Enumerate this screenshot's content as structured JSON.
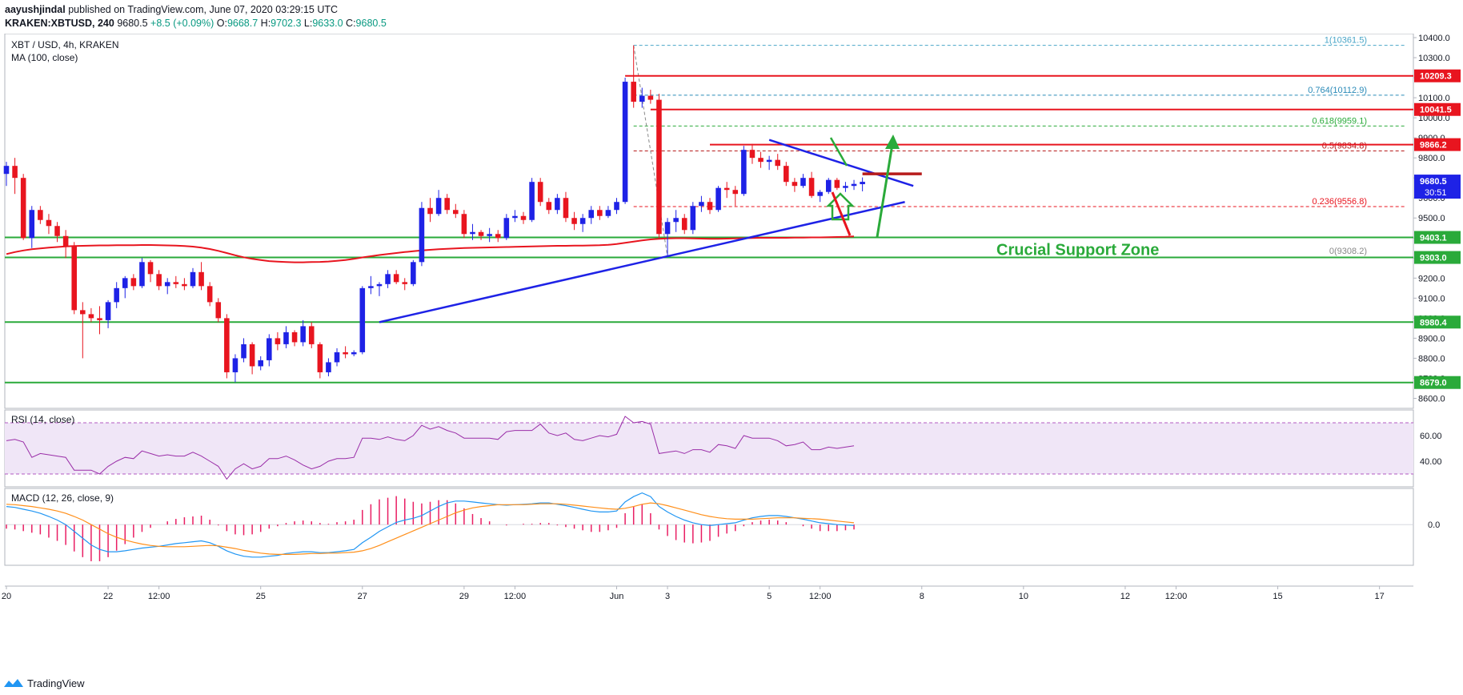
{
  "header": {
    "line1_user": "aayushjindal",
    "line1_rest": "published on TradingView.com, June 07, 2020 03:29:15 UTC",
    "symbol": "KRAKEN:XBTUSD, 240",
    "last": "9680.5",
    "change": "+8.5 (+0.09%)",
    "o_label": "O:",
    "o": "9668.7",
    "h_label": "H:",
    "h": "9702.3",
    "l_label": "L:",
    "l": "9633.0",
    "c_label": "C:",
    "c": "9680.5"
  },
  "chart_labels": {
    "pair": "XBT / USD, 4h, KRAKEN",
    "ma": "MA (100, close)",
    "rsi": "RSI (14, close)",
    "macd": "MACD (12, 26, close, 9)",
    "annotation": "Crucial Support Zone"
  },
  "footer": {
    "brand": "TradingView"
  },
  "colors": {
    "up": "#1e22e6",
    "down": "#e8151f",
    "ma": "#e8151f",
    "support": "#2aaa3a",
    "resistance": "#e8151f",
    "trendline": "#1e22e6",
    "fib": "#4aa6c8",
    "rsi": "#9a2ea8",
    "macd": "#2196f3",
    "signal": "#ff8f1a",
    "hist": "#e91e63"
  },
  "chart_data": {
    "type": "candlestick",
    "ylim": [
      8550,
      10420
    ],
    "y_ticks": [
      8600,
      8700,
      8800,
      8900,
      9000,
      9100,
      9200,
      9300,
      9400,
      9500,
      9600,
      9700,
      9800,
      9900,
      10000,
      10100,
      10200,
      10300,
      10400
    ],
    "y_tick_labels": [
      "8600.0",
      "8700.0",
      "8800.0",
      "8900.0",
      "9000.0",
      "9100.0",
      "9200.0",
      "9300.0",
      "9400.0",
      "9500.0",
      "9600.0",
      "9700.0",
      "9800.0",
      "9900.0",
      "10000.0",
      "10100.0",
      "10200.0",
      "10300.0",
      "10400.0"
    ],
    "x_tick_labels": [
      "20",
      "22",
      "12:00",
      "25",
      "27",
      "29",
      "12:00",
      "Jun",
      "3",
      "5",
      "12:00",
      "8",
      "10",
      "12",
      "12:00",
      "15",
      "17"
    ],
    "x_tick_candle_index": [
      0,
      12,
      18,
      30,
      42,
      54,
      60,
      72,
      78,
      90,
      96,
      108,
      120,
      132,
      138,
      150,
      162
    ],
    "candles": [
      [
        9720,
        9780,
        9660,
        9760
      ],
      [
        9760,
        9800,
        9620,
        9700
      ],
      [
        9700,
        9720,
        9390,
        9400
      ],
      [
        9400,
        9560,
        9350,
        9540
      ],
      [
        9540,
        9560,
        9470,
        9490
      ],
      [
        9490,
        9520,
        9420,
        9460
      ],
      [
        9460,
        9480,
        9380,
        9410
      ],
      [
        9410,
        9440,
        9300,
        9360
      ],
      [
        9360,
        9380,
        9020,
        9040
      ],
      [
        9040,
        9080,
        8800,
        9020
      ],
      [
        9020,
        9050,
        8980,
        9000
      ],
      [
        9000,
        9060,
        8920,
        8990
      ],
      [
        8990,
        9090,
        8950,
        9080
      ],
      [
        9080,
        9180,
        9050,
        9150
      ],
      [
        9150,
        9210,
        9100,
        9200
      ],
      [
        9200,
        9220,
        9140,
        9160
      ],
      [
        9160,
        9300,
        9150,
        9280
      ],
      [
        9280,
        9290,
        9180,
        9220
      ],
      [
        9220,
        9240,
        9140,
        9160
      ],
      [
        9160,
        9200,
        9120,
        9180
      ],
      [
        9180,
        9210,
        9150,
        9170
      ],
      [
        9170,
        9200,
        9140,
        9160
      ],
      [
        9160,
        9250,
        9150,
        9230
      ],
      [
        9230,
        9280,
        9140,
        9160
      ],
      [
        9160,
        9180,
        9060,
        9080
      ],
      [
        9080,
        9100,
        8980,
        9000
      ],
      [
        9000,
        9020,
        8700,
        8730
      ],
      [
        8730,
        8820,
        8680,
        8800
      ],
      [
        8800,
        8900,
        8780,
        8870
      ],
      [
        8870,
        8880,
        8720,
        8760
      ],
      [
        8760,
        8810,
        8740,
        8790
      ],
      [
        8790,
        8920,
        8760,
        8900
      ],
      [
        8900,
        8930,
        8840,
        8870
      ],
      [
        8870,
        8960,
        8850,
        8930
      ],
      [
        8930,
        8940,
        8860,
        8880
      ],
      [
        8880,
        8990,
        8860,
        8960
      ],
      [
        8960,
        8980,
        8850,
        8870
      ],
      [
        8870,
        8880,
        8700,
        8730
      ],
      [
        8730,
        8800,
        8710,
        8780
      ],
      [
        8780,
        8850,
        8760,
        8830
      ],
      [
        8830,
        8860,
        8800,
        8820
      ],
      [
        8820,
        8840,
        8810,
        8830
      ],
      [
        8830,
        9160,
        8820,
        9150
      ],
      [
        9150,
        9210,
        9120,
        9160
      ],
      [
        9160,
        9180,
        9110,
        9170
      ],
      [
        9170,
        9240,
        9150,
        9220
      ],
      [
        9220,
        9240,
        9170,
        9180
      ],
      [
        9180,
        9200,
        9140,
        9170
      ],
      [
        9170,
        9290,
        9160,
        9280
      ],
      [
        9280,
        9580,
        9260,
        9550
      ],
      [
        9550,
        9600,
        9480,
        9520
      ],
      [
        9520,
        9640,
        9510,
        9600
      ],
      [
        9600,
        9620,
        9520,
        9540
      ],
      [
        9540,
        9570,
        9500,
        9520
      ],
      [
        9520,
        9540,
        9400,
        9420
      ],
      [
        9420,
        9470,
        9390,
        9430
      ],
      [
        9430,
        9440,
        9390,
        9410
      ],
      [
        9410,
        9450,
        9380,
        9420
      ],
      [
        9420,
        9440,
        9380,
        9400
      ],
      [
        9400,
        9520,
        9390,
        9500
      ],
      [
        9500,
        9540,
        9480,
        9510
      ],
      [
        9510,
        9530,
        9470,
        9490
      ],
      [
        9490,
        9700,
        9480,
        9680
      ],
      [
        9680,
        9700,
        9560,
        9580
      ],
      [
        9580,
        9600,
        9520,
        9540
      ],
      [
        9540,
        9620,
        9520,
        9600
      ],
      [
        9600,
        9630,
        9480,
        9500
      ],
      [
        9500,
        9530,
        9440,
        9470
      ],
      [
        9470,
        9520,
        9430,
        9500
      ],
      [
        9500,
        9560,
        9470,
        9540
      ],
      [
        9540,
        9560,
        9490,
        9510
      ],
      [
        9510,
        9560,
        9500,
        9540
      ],
      [
        9540,
        9600,
        9520,
        9580
      ],
      [
        9580,
        10200,
        9570,
        10180
      ],
      [
        10180,
        10361.5,
        10050,
        10080
      ],
      [
        10080,
        10150,
        10050,
        10110
      ],
      [
        10110,
        10140,
        10070,
        10090
      ],
      [
        10090,
        10120,
        9400,
        9420
      ],
      [
        9420,
        9500,
        9308.2,
        9480
      ],
      [
        9480,
        9540,
        9430,
        9500
      ],
      [
        9500,
        9520,
        9420,
        9440
      ],
      [
        9440,
        9580,
        9420,
        9560
      ],
      [
        9560,
        9610,
        9530,
        9580
      ],
      [
        9580,
        9600,
        9520,
        9540
      ],
      [
        9540,
        9660,
        9530,
        9650
      ],
      [
        9650,
        9680,
        9600,
        9640
      ],
      [
        9640,
        9660,
        9560,
        9620
      ],
      [
        9620,
        9860,
        9610,
        9840
      ],
      [
        9840,
        9870,
        9770,
        9800
      ],
      [
        9800,
        9830,
        9750,
        9780
      ],
      [
        9780,
        9810,
        9740,
        9790
      ],
      [
        9790,
        9820,
        9740,
        9760
      ],
      [
        9760,
        9780,
        9660,
        9680
      ],
      [
        9680,
        9700,
        9630,
        9660
      ],
      [
        9660,
        9720,
        9650,
        9700
      ],
      [
        9700,
        9730,
        9600,
        9610
      ],
      [
        9610,
        9640,
        9580,
        9630
      ],
      [
        9630,
        9700,
        9620,
        9690
      ],
      [
        9690,
        9700,
        9640,
        9650
      ],
      [
        9650,
        9680,
        9630,
        9660
      ],
      [
        9660,
        9690,
        9640,
        9670
      ],
      [
        9668.7,
        9702.3,
        9633.0,
        9680.5
      ]
    ],
    "ma100": [
      9320,
      9330,
      9338,
      9344,
      9348,
      9352,
      9355,
      9358,
      9360,
      9361,
      9362,
      9363,
      9363,
      9364,
      9364,
      9364,
      9365,
      9365,
      9364,
      9363,
      9362,
      9360,
      9357,
      9352,
      9345,
      9336,
      9325,
      9314,
      9304,
      9296,
      9290,
      9285,
      9282,
      9280,
      9279,
      9279,
      9280,
      9281,
      9283,
      9286,
      9290,
      9296,
      9303,
      9309,
      9315,
      9320,
      9325,
      9330,
      9334,
      9338,
      9341,
      9344,
      9346,
      9348,
      9350,
      9351,
      9352,
      9353,
      9354,
      9355,
      9356,
      9357,
      9358,
      9359,
      9360,
      9361,
      9361,
      9362,
      9362,
      9363,
      9364,
      9366,
      9370,
      9376,
      9382,
      9388,
      9393,
      9396,
      9398,
      9399,
      9399,
      9398,
      9397,
      9396,
      9396,
      9397,
      9398,
      9399,
      9400,
      9401,
      9401,
      9401,
      9401,
      9402,
      9402,
      9403,
      9403,
      9404,
      9405,
      9406,
      9408
    ],
    "price_levels": [
      {
        "value": 10209.3,
        "label": "10209.3",
        "kind": "resistance"
      },
      {
        "value": 10041.5,
        "label": "10041.5",
        "kind": "resistance"
      },
      {
        "value": 9866.2,
        "label": "9866.2",
        "kind": "resistance"
      },
      {
        "value": 9403.1,
        "label": "9403.1",
        "kind": "support"
      },
      {
        "value": 9303.0,
        "label": "9303.0",
        "kind": "support"
      },
      {
        "value": 8980.4,
        "label": "8980.4",
        "kind": "support"
      },
      {
        "value": 8679.0,
        "label": "8679.0",
        "kind": "support"
      }
    ],
    "last_price": {
      "value": 9680.5,
      "label": "9680.5",
      "countdown": "30:51"
    },
    "fib_levels": [
      {
        "ratio": "1",
        "value": 10361.5,
        "label": "1(10361.5)",
        "color": "#4aa6c8"
      },
      {
        "ratio": "0.764",
        "value": 10112.9,
        "label": "0.764(10112.9)",
        "color": "#2a8ab8"
      },
      {
        "ratio": "0.618",
        "value": 9959.1,
        "label": "0.618(9959.1)",
        "color": "#2aaa3a"
      },
      {
        "ratio": "0.5",
        "value": 9834.8,
        "label": "0.5(9834.8)",
        "color": "#b71c1c"
      },
      {
        "ratio": "0.236",
        "value": 9556.8,
        "label": "0.236(9556.8)",
        "color": "#e8151f"
      },
      {
        "ratio": "0",
        "value": 9308.2,
        "label": "0(9308.2)",
        "color": "#888888"
      }
    ],
    "rsi": {
      "ylim": [
        20,
        80
      ],
      "ticks": [
        40,
        60
      ],
      "tick_labels": [
        "40.00",
        "60.00"
      ],
      "band": [
        30,
        70
      ],
      "values": [
        56,
        57,
        55,
        43,
        46,
        45,
        44,
        43,
        33,
        33,
        33,
        30,
        36,
        40,
        43,
        42,
        48,
        46,
        44,
        45,
        44,
        44,
        47,
        44,
        40,
        36,
        26,
        34,
        38,
        34,
        36,
        42,
        42,
        44,
        41,
        37,
        34,
        36,
        40,
        42,
        42,
        43,
        58,
        58,
        57,
        59,
        57,
        56,
        60,
        68,
        65,
        67,
        64,
        62,
        58,
        58,
        58,
        58,
        57,
        63,
        64,
        64,
        64,
        69,
        62,
        60,
        62,
        57,
        56,
        58,
        60,
        59,
        61,
        75,
        70,
        71,
        69,
        46,
        47,
        48,
        46,
        49,
        49,
        47,
        53,
        52,
        50,
        60,
        58,
        58,
        58,
        56,
        52,
        53,
        55,
        49,
        49,
        51,
        50,
        51,
        52
      ]
    },
    "macd": {
      "ylim": [
        -90,
        80
      ],
      "ticks": [
        0
      ],
      "tick_labels": [
        "0.0"
      ],
      "macd": [
        40,
        38,
        34,
        30,
        25,
        18,
        10,
        0,
        -15,
        -30,
        -45,
        -55,
        -60,
        -60,
        -58,
        -55,
        -52,
        -50,
        -48,
        -45,
        -42,
        -40,
        -38,
        -36,
        -40,
        -48,
        -58,
        -65,
        -70,
        -72,
        -72,
        -70,
        -68,
        -64,
        -62,
        -60,
        -60,
        -62,
        -62,
        -60,
        -58,
        -55,
        -40,
        -28,
        -15,
        -5,
        5,
        10,
        14,
        20,
        30,
        40,
        48,
        52,
        52,
        50,
        48,
        46,
        44,
        43,
        44,
        45,
        46,
        48,
        48,
        45,
        42,
        38,
        34,
        30,
        28,
        28,
        30,
        50,
        62,
        70,
        62,
        40,
        28,
        18,
        10,
        4,
        0,
        -2,
        0,
        2,
        4,
        10,
        15,
        18,
        20,
        20,
        18,
        15,
        12,
        8,
        4,
        2,
        0,
        -1,
        -2
      ],
      "signal": [
        45,
        44,
        42,
        40,
        37,
        34,
        30,
        25,
        18,
        10,
        0,
        -10,
        -20,
        -28,
        -34,
        -39,
        -43,
        -46,
        -48,
        -49,
        -49,
        -49,
        -48,
        -47,
        -46,
        -47,
        -50,
        -53,
        -57,
        -60,
        -63,
        -65,
        -66,
        -66,
        -66,
        -65,
        -64,
        -64,
        -63,
        -63,
        -62,
        -61,
        -58,
        -53,
        -46,
        -38,
        -30,
        -22,
        -14,
        -6,
        2,
        10,
        18,
        26,
        32,
        37,
        40,
        42,
        44,
        44,
        44,
        44,
        45,
        46,
        46,
        46,
        45,
        43,
        41,
        39,
        37,
        35,
        34,
        36,
        40,
        45,
        48,
        46,
        42,
        37,
        32,
        27,
        22,
        18,
        15,
        13,
        12,
        12,
        12,
        13,
        14,
        15,
        15,
        15,
        14,
        13,
        12,
        10,
        8,
        6,
        4
      ]
    }
  }
}
